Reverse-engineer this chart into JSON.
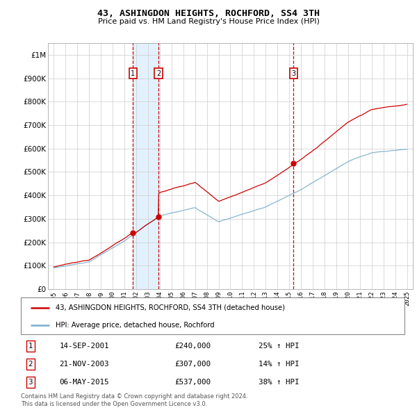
{
  "title": "43, ASHINGDON HEIGHTS, ROCHFORD, SS4 3TH",
  "subtitle": "Price paid vs. HM Land Registry's House Price Index (HPI)",
  "legend_line1": "43, ASHINGDON HEIGHTS, ROCHFORD, SS4 3TH (detached house)",
  "legend_line2": "HPI: Average price, detached house, Rochford",
  "footer1": "Contains HM Land Registry data © Crown copyright and database right 2024.",
  "footer2": "This data is licensed under the Open Government Licence v3.0.",
  "sales": [
    {
      "num": 1,
      "date": "14-SEP-2001",
      "price": 240000,
      "hpi_pct": "25%",
      "direction": "↑",
      "year": 2001.71
    },
    {
      "num": 2,
      "date": "21-NOV-2003",
      "price": 307000,
      "hpi_pct": "14%",
      "direction": "↑",
      "year": 2003.89
    },
    {
      "num": 3,
      "date": "06-MAY-2015",
      "price": 537000,
      "hpi_pct": "38%",
      "direction": "↑",
      "year": 2015.35
    }
  ],
  "red_line_color": "#cc0000",
  "blue_line_color": "#7aadcc",
  "marker_box_color": "#cc0000",
  "shaded_region_color": "#ddeeff",
  "ylim": [
    0,
    1050000
  ],
  "xlim": [
    1994.5,
    2025.5
  ],
  "yticks": [
    0,
    100000,
    200000,
    300000,
    400000,
    500000,
    600000,
    700000,
    800000,
    900000,
    1000000
  ],
  "ytick_labels": [
    "£0",
    "£100K",
    "£200K",
    "£300K",
    "£400K",
    "£500K",
    "£600K",
    "£700K",
    "£800K",
    "£900K",
    "£1M"
  ],
  "xticks": [
    1995,
    1996,
    1997,
    1998,
    1999,
    2000,
    2001,
    2002,
    2003,
    2004,
    2005,
    2006,
    2007,
    2008,
    2009,
    2010,
    2011,
    2012,
    2013,
    2014,
    2015,
    2016,
    2017,
    2018,
    2019,
    2020,
    2021,
    2022,
    2023,
    2024,
    2025
  ]
}
